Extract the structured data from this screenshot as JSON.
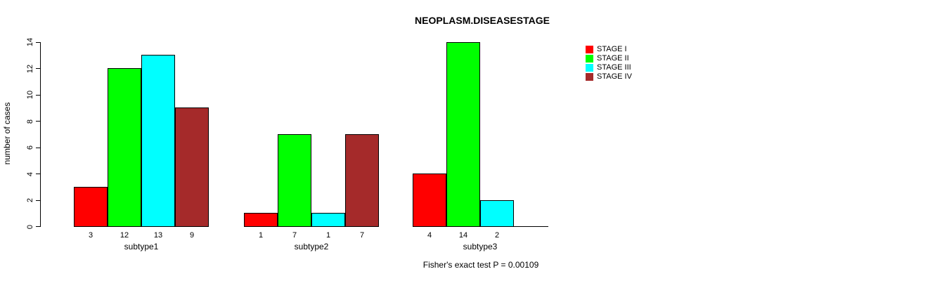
{
  "chart_data": {
    "type": "bar",
    "title": "NEOPLASM.DISEASESTAGE",
    "xlabel": "",
    "ylabel": "number of cases",
    "categories": [
      "subtype1",
      "subtype2",
      "subtype3"
    ],
    "series": [
      {
        "name": "STAGE I",
        "color": "#FF0000",
        "values": [
          3,
          1,
          4
        ]
      },
      {
        "name": "STAGE II",
        "color": "#00FF00",
        "values": [
          12,
          7,
          14
        ]
      },
      {
        "name": "STAGE III",
        "color": "#00FFFF",
        "values": [
          13,
          1,
          2
        ]
      },
      {
        "name": "STAGE IV",
        "color": "#A52A2A",
        "values": [
          9,
          7,
          0
        ]
      }
    ],
    "ylim": [
      0,
      14
    ],
    "yticks": [
      0,
      2,
      4,
      6,
      8,
      10,
      12,
      14
    ],
    "grid": false,
    "legend_position": "top-right",
    "bar_value_labels": [
      [
        "3",
        "12",
        "13",
        "9"
      ],
      [
        "1",
        "7",
        "1",
        "7"
      ],
      [
        "4",
        "14",
        "2",
        ""
      ]
    ],
    "annotation": "Fisher's exact test P = 0.00109"
  }
}
